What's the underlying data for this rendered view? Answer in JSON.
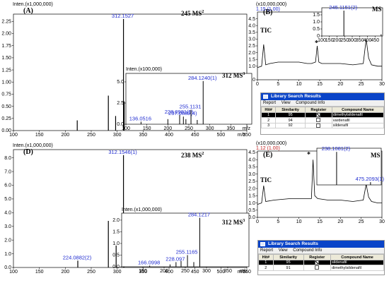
{
  "panels": {
    "A": {
      "label": "(A)",
      "y_label": "Inten.(x1,000,000)",
      "ms_label": "245 MS",
      "ms_sup": "2"
    },
    "A_inset": {
      "y_label": "Inten.(x100,000)",
      "ms_label": "312 MS",
      "ms_sup": "3"
    },
    "B": {
      "label": "(B)",
      "tic_label": "TIC",
      "y_label": "(x10,000,000)",
      "top_note": "1.15 (1.00)",
      "asterisk": "*"
    },
    "B_inset": {
      "ms_label": "MS",
      "peak": "245.1151(2)",
      "y_label": "Inten.(x1,000,000)"
    },
    "C": {
      "label": "(C)"
    },
    "D": {
      "label": "(D)",
      "y_label": "Inten.(x1,000,000)",
      "ms_label": "238 MS",
      "ms_sup": "2"
    },
    "D_inset": {
      "y_label": "Inten.(x1,000,000)",
      "ms_label": "312 MS",
      "ms_sup": "3"
    },
    "E": {
      "label": "(E)",
      "tic_label": "TIC",
      "y_label": "(x10,000,000)",
      "top_note": "1.12 (1.00)",
      "asterisk": "*"
    },
    "E_inset": {
      "ms_label": "MS",
      "peak_main": "238.1081(2)",
      "peak_minor": "475.2093(1)"
    },
    "F": {
      "label": "(F)"
    }
  },
  "library_C": {
    "title": "Library Search Results",
    "menu": [
      "Report",
      "View",
      "Compound Info"
    ],
    "columns": [
      "Hit#",
      "Similarity",
      "Register",
      "Compound Name"
    ],
    "rows": [
      {
        "hit": "1",
        "similarity": "95",
        "register": true,
        "name": "dimethylsildenafil"
      },
      {
        "hit": "2",
        "similarity": "94",
        "register": false,
        "name": "vardenafil"
      },
      {
        "hit": "3",
        "similarity": "92",
        "register": false,
        "name": "sildenafil"
      }
    ]
  },
  "library_F": {
    "title": "Library Search Results",
    "menu": [
      "Report",
      "View",
      "Compound Info"
    ],
    "columns": [
      "Hit#",
      "Similarity",
      "Register",
      "Compound Name"
    ],
    "rows": [
      {
        "hit": "1",
        "similarity": "95",
        "register": true,
        "name": "sildenafil"
      },
      {
        "hit": "2",
        "similarity": "91",
        "register": false,
        "name": "dimethylsildenafil"
      }
    ]
  },
  "colors": {
    "peak_label": "#1f2bd0",
    "title_bar": "#0a44c8",
    "selected_row": "#000000",
    "marker": "#c8c8ff"
  },
  "chart_data": [
    {
      "id": "A",
      "type": "bar",
      "xlabel": "m/z",
      "ylabel": "Inten.(x1,000,000)",
      "xlim": [
        100,
        550
      ],
      "ylim": [
        0,
        2.4
      ],
      "xticks": [
        100,
        150,
        200,
        250,
        300,
        350,
        400,
        450,
        500,
        550
      ],
      "yticks": [
        0,
        0.25,
        0.5,
        0.75,
        1.0,
        1.25,
        1.5,
        1.75,
        2.0,
        2.25
      ],
      "ytick_labels": [
        "0.00",
        "0.25",
        "0.50",
        "0.75",
        "1.00",
        "1.25",
        "1.50",
        "1.75",
        "2.00",
        "2.25"
      ],
      "peaks": [
        {
          "x": 223,
          "y": 0.21,
          "label": ""
        },
        {
          "x": 283,
          "y": 0.72,
          "label": ""
        },
        {
          "x": 297,
          "y": 0.3,
          "label": ""
        },
        {
          "x": 312.1527,
          "y": 2.3,
          "label": "312.1527"
        },
        {
          "x": 313.5,
          "y": 0.6,
          "label": ""
        }
      ]
    },
    {
      "id": "A_inset",
      "type": "bar",
      "xlabel": "m/z",
      "ylabel": "Inten.(x100,000)",
      "xlim": [
        100,
        400
      ],
      "ylim": [
        0,
        6
      ],
      "xticks": [
        100,
        150,
        200,
        250,
        300,
        350
      ],
      "yticks": [
        0,
        2.5,
        5.0
      ],
      "ytick_labels": [
        "0.0",
        "2.5",
        "5.0"
      ],
      "peaks": [
        {
          "x": 136.0516,
          "y": 0.3,
          "label": "136.0516"
        },
        {
          "x": 200,
          "y": 0.6,
          "label": ""
        },
        {
          "x": 228.0981,
          "y": 1.1,
          "label": "228.0981(5)"
        },
        {
          "x": 237,
          "y": 0.9,
          "label": "237.0889(4)"
        },
        {
          "x": 243,
          "y": 0.6,
          "label": ""
        },
        {
          "x": 255.1131,
          "y": 1.7,
          "label": "255.1131"
        },
        {
          "x": 270,
          "y": 0.5,
          "label": ""
        },
        {
          "x": 284.124,
          "y": 5.1,
          "label": "284.1240(1)"
        }
      ]
    },
    {
      "id": "B",
      "type": "line",
      "xlabel": "",
      "ylabel": "(x10,000,000)",
      "xlim": [
        0,
        30
      ],
      "ylim": [
        0,
        5.0
      ],
      "xticks": [
        0,
        5,
        10,
        15,
        20,
        25,
        30
      ],
      "yticks": [
        0,
        1.0,
        1.5,
        2.0,
        2.5,
        3.0,
        3.5,
        4.0,
        4.5
      ],
      "ytick_labels": [
        "0.0",
        "1.0",
        "1.5",
        "2.0",
        "2.5",
        "3.0",
        "3.5",
        "4.0",
        "4.5"
      ],
      "series": [
        {
          "x": [
            0,
            1,
            1.5,
            2,
            3,
            5,
            8,
            10,
            12,
            13,
            14,
            14.4,
            14.8,
            15.5,
            17,
            20,
            23,
            25.5,
            26.2,
            26.8,
            27.5,
            29,
            30
          ],
          "y": [
            0.9,
            1.0,
            2.6,
            1.1,
            1.2,
            1.3,
            1.3,
            1.3,
            1.2,
            1.2,
            1.3,
            2.5,
            1.3,
            1.2,
            1.2,
            1.2,
            1.1,
            1.2,
            3.0,
            1.6,
            1.1,
            1.0,
            1.0
          ]
        }
      ]
    },
    {
      "id": "B_inset",
      "type": "bar",
      "xlabel": "",
      "ylabel": "",
      "xlim": [
        100,
        500
      ],
      "ylim": [
        0,
        2.0
      ],
      "xticks": [
        100,
        150,
        200,
        250,
        300,
        350,
        400,
        450
      ],
      "yticks": [
        0,
        0.5,
        1.0,
        1.5
      ],
      "ytick_labels": [
        "0",
        "0.5",
        "1.0",
        "1.5"
      ],
      "peaks": [
        {
          "x": 245.1151,
          "y": 1.8,
          "label": "245.1151(2)"
        },
        {
          "x": 490,
          "y": 0.12,
          "label": ""
        }
      ]
    },
    {
      "id": "D",
      "type": "bar",
      "xlabel": "m/z",
      "ylabel": "Inten.(x1,000,000)",
      "xlim": [
        100,
        550
      ],
      "ylim": [
        0,
        8.6
      ],
      "xticks": [
        100,
        150,
        200,
        250,
        300,
        350,
        400,
        450,
        500,
        550
      ],
      "yticks": [
        0,
        1,
        2,
        3,
        4,
        5,
        6,
        7,
        8
      ],
      "ytick_labels": [
        "0.0",
        "1.0",
        "2.0",
        "3.0",
        "4.0",
        "5.0",
        "6.0",
        "7.0",
        "8.0"
      ],
      "peaks": [
        {
          "x": 224.0882,
          "y": 0.5,
          "label": "224.0882(2)"
        },
        {
          "x": 283,
          "y": 3.4,
          "label": ""
        },
        {
          "x": 298,
          "y": 1.6,
          "label": ""
        },
        {
          "x": 312.1546,
          "y": 8.2,
          "label": "312.1546(1)"
        },
        {
          "x": 313.5,
          "y": 1.7,
          "label": ""
        }
      ]
    },
    {
      "id": "D_inset",
      "type": "bar",
      "xlabel": "m/z",
      "ylabel": "Inten.(x1,000,000)",
      "xlim": [
        100,
        400
      ],
      "ylim": [
        0,
        2.3
      ],
      "xticks": [
        150,
        200,
        250,
        300,
        350
      ],
      "yticks": [
        0,
        0.5,
        1.0,
        1.5,
        2.0
      ],
      "ytick_labels": [
        "0.0",
        "0.5",
        "1.0",
        "1.5",
        "2.0"
      ],
      "peaks": [
        {
          "x": 166.0998,
          "y": 0.05,
          "label": "166.0998"
        },
        {
          "x": 214,
          "y": 0.1,
          "label": ""
        },
        {
          "x": 228.097,
          "y": 0.2,
          "label": "228.097"
        },
        {
          "x": 240,
          "y": 0.25,
          "label": ""
        },
        {
          "x": 255.1165,
          "y": 0.5,
          "label": "255.1165"
        },
        {
          "x": 270,
          "y": 0.2,
          "label": ""
        },
        {
          "x": 284.1217,
          "y": 2.1,
          "label": "284.1217"
        }
      ]
    },
    {
      "id": "E",
      "type": "line",
      "xlabel": "",
      "ylabel": "(x10,000,000)",
      "xlim": [
        0,
        30
      ],
      "ylim": [
        0,
        4.6
      ],
      "xticks": [
        0,
        5,
        10,
        15,
        20,
        25,
        30
      ],
      "yticks": [
        0,
        0.5,
        1.0,
        1.5,
        2.0,
        2.5,
        3.0,
        3.5,
        4.0,
        4.5
      ],
      "ytick_labels": [
        "0.0",
        "0.5",
        "1.0",
        "1.5",
        "2.0",
        "2.5",
        "3.0",
        "3.5",
        "4.0",
        "4.5"
      ],
      "series": [
        {
          "x": [
            0,
            1,
            1.5,
            2,
            4,
            8,
            11,
            12,
            13,
            13.4,
            13.8,
            14.5,
            17,
            20,
            23,
            25.5,
            26.2,
            26.8,
            27.5,
            29,
            30
          ],
          "y": [
            0.9,
            1.0,
            2.2,
            1.1,
            1.2,
            1.3,
            1.3,
            1.3,
            1.3,
            4.0,
            1.5,
            1.3,
            1.2,
            1.2,
            1.1,
            1.2,
            2.3,
            1.4,
            1.1,
            1.0,
            1.0
          ]
        }
      ]
    },
    {
      "id": "E_inset",
      "type": "bar",
      "xlabel": "",
      "ylabel": "",
      "xlim": [
        100,
        550
      ],
      "ylim": [
        0,
        2.0
      ],
      "xticks": [],
      "yticks": [],
      "ytick_labels": [],
      "peaks": [
        {
          "x": 238.1081,
          "y": 1.8,
          "label": "238.1081(2)"
        },
        {
          "x": 475.2093,
          "y": 0.15,
          "label": "475.2093(1)"
        }
      ]
    }
  ]
}
